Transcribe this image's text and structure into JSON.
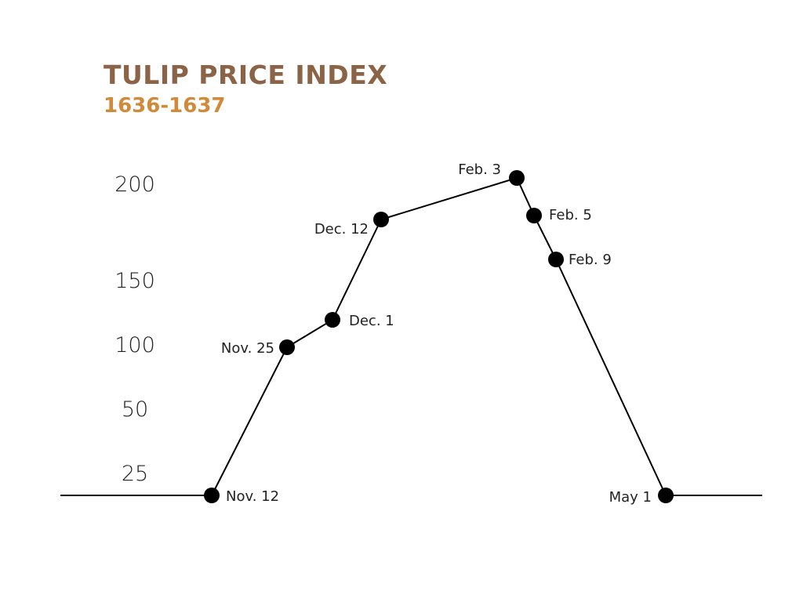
{
  "chart_data": {
    "type": "line",
    "title": "TULIP PRICE INDEX",
    "subtitle": "1636-1637",
    "xlabel": "",
    "ylabel": "",
    "y_ticks": [
      "200",
      "150",
      "100",
      "50",
      "25"
    ],
    "grid": false,
    "legend": "none",
    "series": [
      {
        "points": [
          {
            "x": "Nov. 12",
            "y": 15
          },
          {
            "x": "Nov. 25",
            "y": 100
          },
          {
            "x": "Dec. 1",
            "y": 120
          },
          {
            "x": "Dec. 12",
            "y": 178
          },
          {
            "x": "Feb. 3",
            "y": 202
          },
          {
            "x": "Feb. 5",
            "y": 180
          },
          {
            "x": "Feb. 9",
            "y": 155
          },
          {
            "x": "May 1",
            "y": 15
          }
        ]
      }
    ]
  },
  "colors": {
    "title": "#8b6347",
    "subtitle": "#d08a3a",
    "line": "#000000",
    "text": "#222222"
  }
}
